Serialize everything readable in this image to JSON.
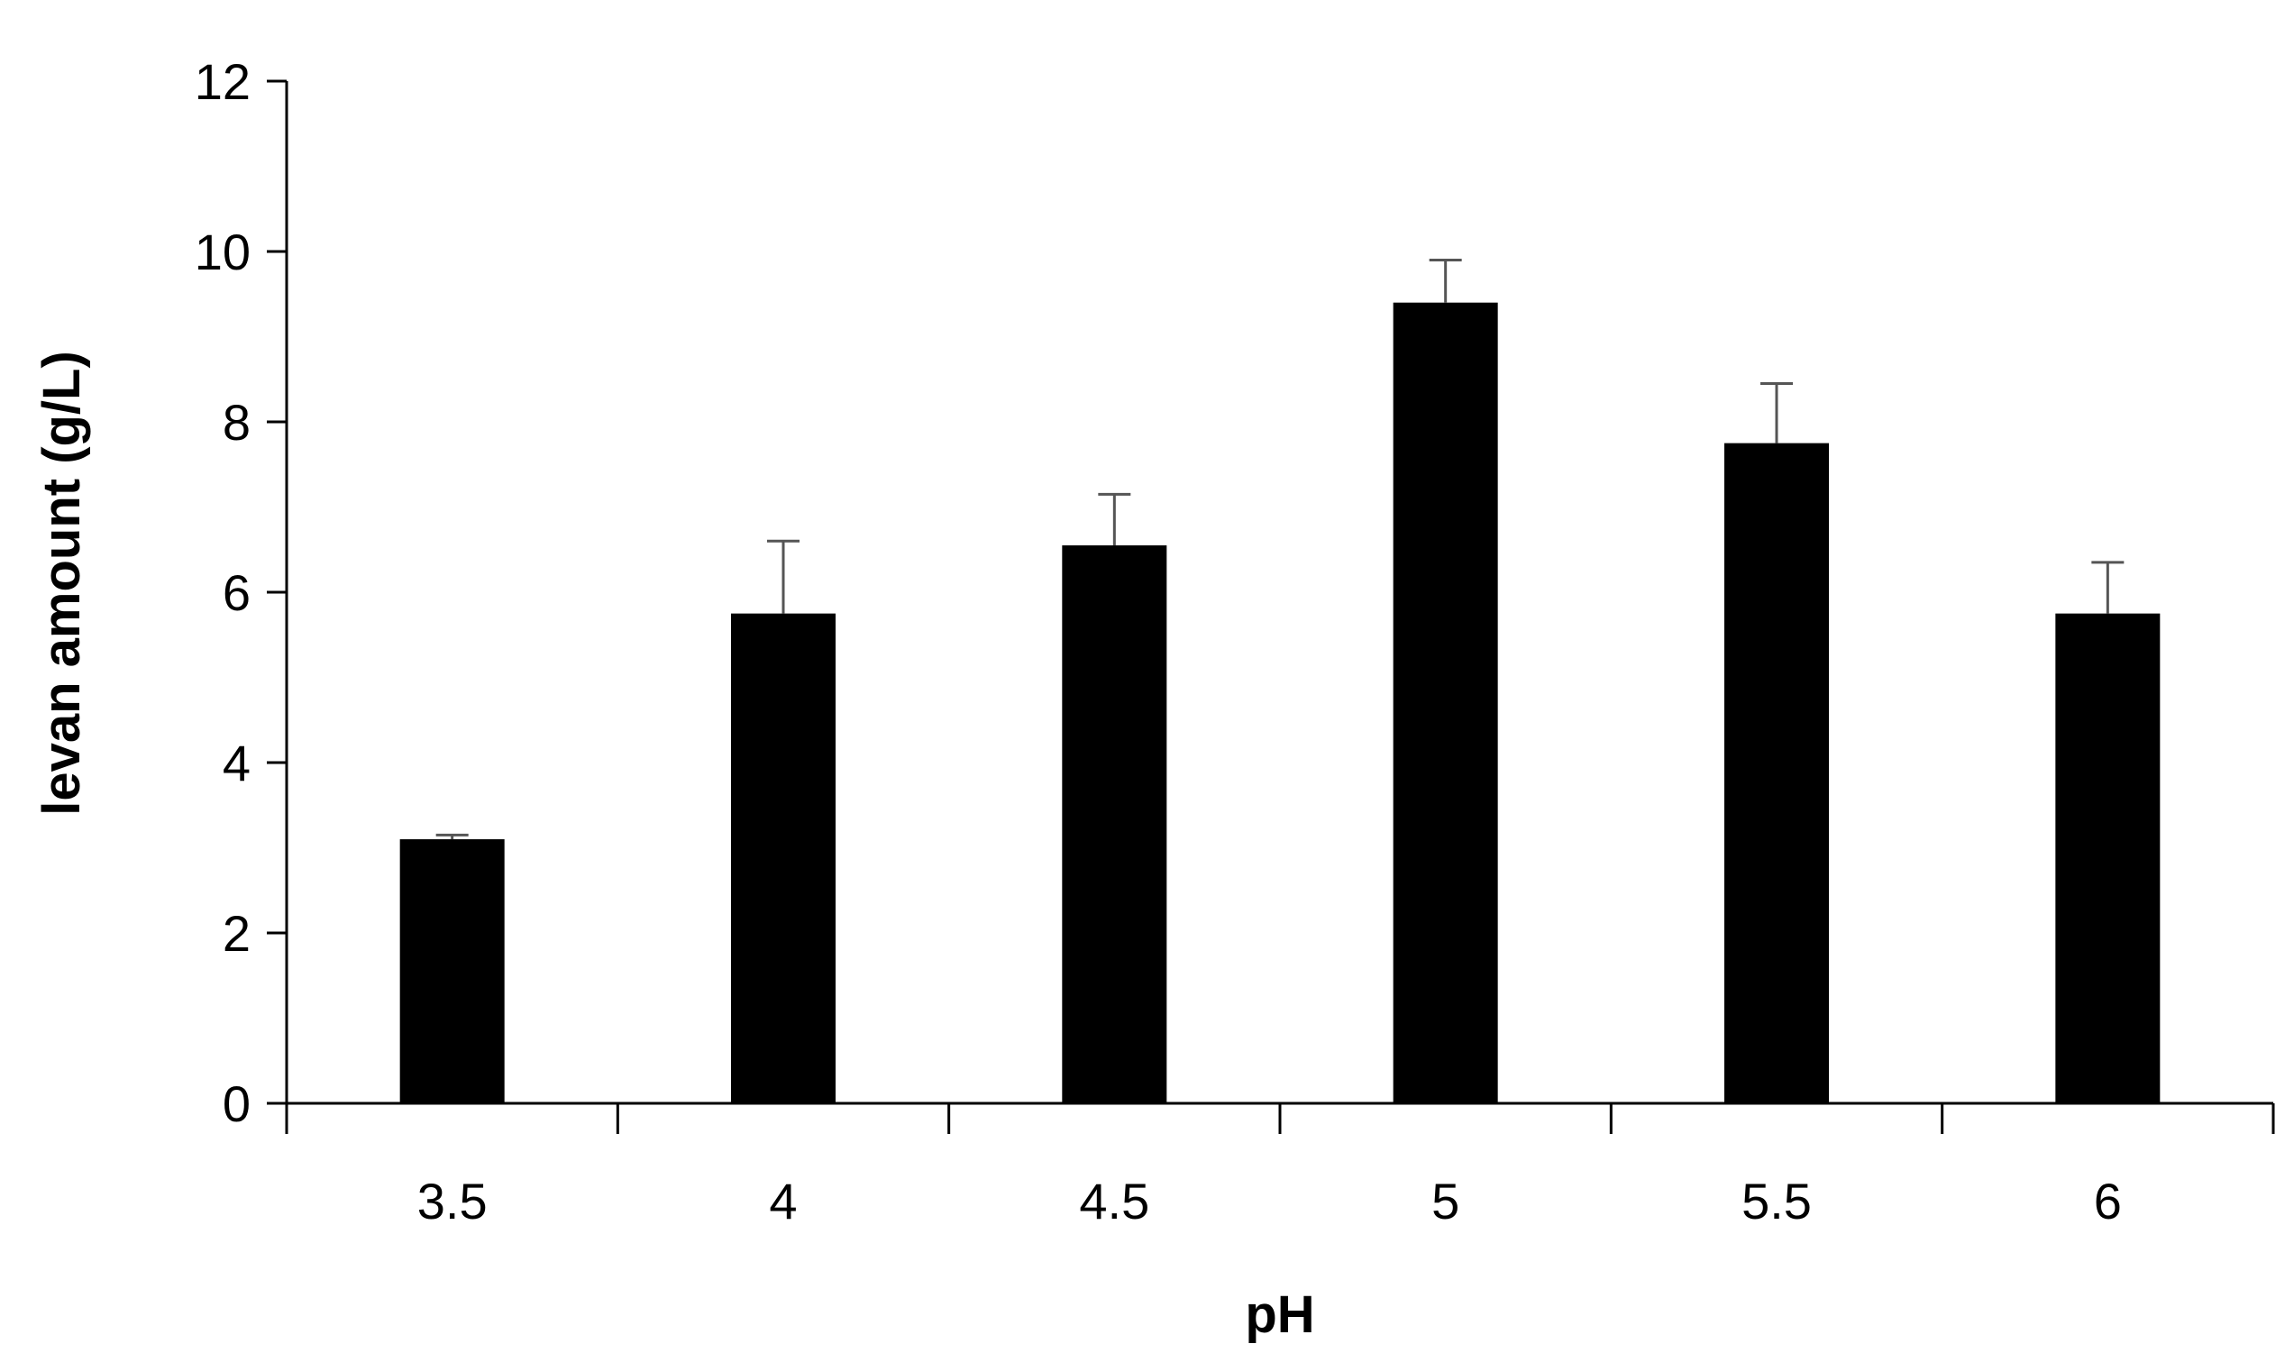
{
  "chart_data": {
    "type": "bar",
    "title": "",
    "xlabel": "pH",
    "ylabel": "levan amount  (g/L)",
    "categories": [
      "3.5",
      "4",
      "4.5",
      "5",
      "5.5",
      "6"
    ],
    "series": [
      {
        "values": [
          3.1,
          5.75,
          6.55,
          9.4,
          7.75,
          5.75
        ],
        "error_plus": [
          0.05,
          0.85,
          0.6,
          0.5,
          0.7,
          0.6
        ],
        "color": "#000000"
      }
    ],
    "ylim": [
      0,
      12
    ],
    "yticks": [
      "0",
      "2",
      "4",
      "6",
      "8",
      "10",
      "12"
    ],
    "grid": false,
    "legend": "none"
  }
}
